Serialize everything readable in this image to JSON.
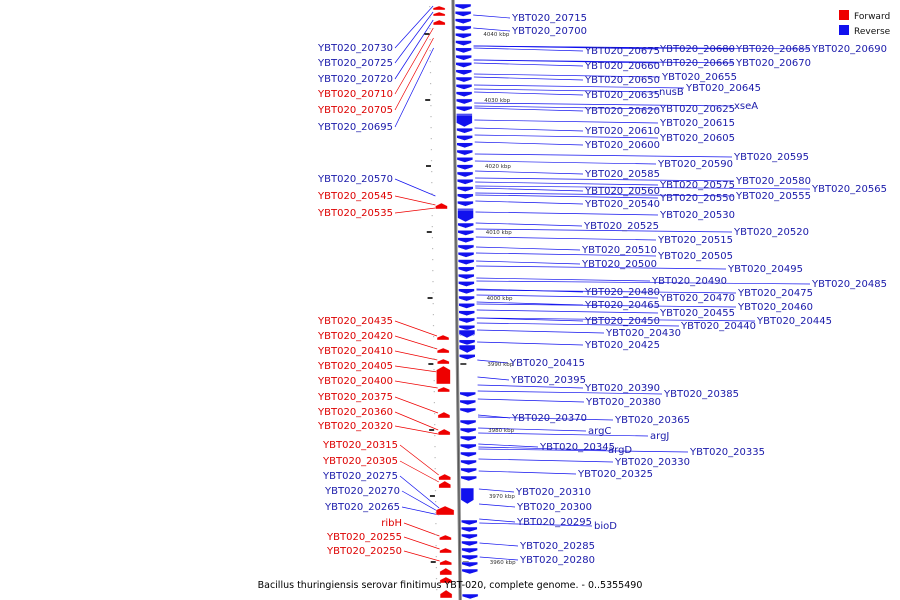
{
  "caption": "Bacillus thuringiensis serovar finitimus YBT-020, complete genome. - 0..5355490",
  "legend": [
    {
      "label": "Forward",
      "color": "#ee0000"
    },
    {
      "label": "Reverse",
      "color": "#1111ee"
    }
  ],
  "ticks": [
    "4040 kbp",
    "4030 kbp",
    "4020 kbp",
    "4010 kbp",
    "4000 kbp",
    "3990 kbp",
    "3980 kbp",
    "3970 kbp",
    "3960 kbp"
  ],
  "left_labels": [
    {
      "name": "YBT020_20730",
      "strand": "reverse"
    },
    {
      "name": "YBT020_20725",
      "strand": "reverse"
    },
    {
      "name": "YBT020_20720",
      "strand": "reverse"
    },
    {
      "name": "YBT020_20710",
      "strand": "forward"
    },
    {
      "name": "YBT020_20705",
      "strand": "forward"
    },
    {
      "name": "YBT020_20695",
      "strand": "reverse"
    },
    {
      "name": "YBT020_20570",
      "strand": "reverse"
    },
    {
      "name": "YBT020_20545",
      "strand": "forward"
    },
    {
      "name": "YBT020_20535",
      "strand": "forward"
    },
    {
      "name": "YBT020_20435",
      "strand": "forward"
    },
    {
      "name": "YBT020_20420",
      "strand": "forward"
    },
    {
      "name": "YBT020_20410",
      "strand": "forward"
    },
    {
      "name": "YBT020_20405",
      "strand": "forward"
    },
    {
      "name": "YBT020_20400",
      "strand": "forward"
    },
    {
      "name": "YBT020_20375",
      "strand": "forward"
    },
    {
      "name": "YBT020_20360",
      "strand": "forward"
    },
    {
      "name": "YBT020_20320",
      "strand": "forward"
    },
    {
      "name": "YBT020_20315",
      "strand": "forward"
    },
    {
      "name": "YBT020_20305",
      "strand": "forward"
    },
    {
      "name": "YBT020_20275",
      "strand": "reverse"
    },
    {
      "name": "YBT020_20270",
      "strand": "reverse"
    },
    {
      "name": "YBT020_20265",
      "strand": "reverse"
    },
    {
      "name": "ribH",
      "strand": "forward"
    },
    {
      "name": "YBT020_20255",
      "strand": "forward"
    },
    {
      "name": "YBT020_20250",
      "strand": "forward"
    }
  ],
  "right_labels": [
    {
      "name": "YBT020_20715",
      "strand": "reverse"
    },
    {
      "name": "YBT020_20700",
      "strand": "reverse"
    },
    {
      "name": "YBT020_20675",
      "strand": "reverse"
    },
    {
      "name": "YBT020_20680",
      "strand": "reverse"
    },
    {
      "name": "YBT020_20685",
      "strand": "reverse"
    },
    {
      "name": "YBT020_20690",
      "strand": "reverse"
    },
    {
      "name": "YBT020_20660",
      "strand": "reverse"
    },
    {
      "name": "YBT020_20665",
      "strand": "reverse"
    },
    {
      "name": "YBT020_20670",
      "strand": "reverse"
    },
    {
      "name": "YBT020_20650",
      "strand": "reverse"
    },
    {
      "name": "YBT020_20655",
      "strand": "reverse"
    },
    {
      "name": "YBT020_20635",
      "strand": "reverse"
    },
    {
      "name": "nusB",
      "strand": "reverse"
    },
    {
      "name": "YBT020_20645",
      "strand": "reverse"
    },
    {
      "name": "YBT020_20620",
      "strand": "reverse"
    },
    {
      "name": "YBT020_20625",
      "strand": "reverse"
    },
    {
      "name": "xseA",
      "strand": "reverse"
    },
    {
      "name": "YBT020_20615",
      "strand": "reverse"
    },
    {
      "name": "YBT020_20610",
      "strand": "reverse"
    },
    {
      "name": "YBT020_20605",
      "strand": "reverse"
    },
    {
      "name": "YBT020_20600",
      "strand": "reverse"
    },
    {
      "name": "YBT020_20595",
      "strand": "reverse"
    },
    {
      "name": "YBT020_20590",
      "strand": "reverse"
    },
    {
      "name": "YBT020_20585",
      "strand": "reverse"
    },
    {
      "name": "YBT020_20580",
      "strand": "reverse"
    },
    {
      "name": "YBT020_20575",
      "strand": "reverse"
    },
    {
      "name": "YBT020_20565",
      "strand": "reverse"
    },
    {
      "name": "YBT020_20560",
      "strand": "reverse"
    },
    {
      "name": "YBT020_20555",
      "strand": "reverse"
    },
    {
      "name": "YBT020_20550",
      "strand": "reverse"
    },
    {
      "name": "YBT020_20540",
      "strand": "reverse"
    },
    {
      "name": "YBT020_20530",
      "strand": "reverse"
    },
    {
      "name": "YBT020_20525",
      "strand": "reverse"
    },
    {
      "name": "YBT020_20520",
      "strand": "reverse"
    },
    {
      "name": "YBT020_20515",
      "strand": "reverse"
    },
    {
      "name": "YBT020_20510",
      "strand": "reverse"
    },
    {
      "name": "YBT020_20505",
      "strand": "reverse"
    },
    {
      "name": "YBT020_20500",
      "strand": "reverse"
    },
    {
      "name": "YBT020_20495",
      "strand": "reverse"
    },
    {
      "name": "YBT020_20490",
      "strand": "reverse"
    },
    {
      "name": "YBT020_20485",
      "strand": "reverse"
    },
    {
      "name": "YBT020_20480",
      "strand": "reverse"
    },
    {
      "name": "YBT020_20475",
      "strand": "reverse"
    },
    {
      "name": "YBT020_20470",
      "strand": "reverse"
    },
    {
      "name": "YBT020_20465",
      "strand": "reverse"
    },
    {
      "name": "YBT020_20460",
      "strand": "reverse"
    },
    {
      "name": "YBT020_20455",
      "strand": "reverse"
    },
    {
      "name": "YBT020_20450",
      "strand": "reverse"
    },
    {
      "name": "YBT020_20445",
      "strand": "reverse"
    },
    {
      "name": "YBT020_20440",
      "strand": "reverse"
    },
    {
      "name": "YBT020_20430",
      "strand": "reverse"
    },
    {
      "name": "YBT020_20425",
      "strand": "reverse"
    },
    {
      "name": "YBT020_20415",
      "strand": "reverse"
    },
    {
      "name": "YBT020_20395",
      "strand": "reverse"
    },
    {
      "name": "YBT020_20390",
      "strand": "reverse"
    },
    {
      "name": "YBT020_20385",
      "strand": "reverse"
    },
    {
      "name": "YBT020_20380",
      "strand": "reverse"
    },
    {
      "name": "YBT020_20370",
      "strand": "reverse"
    },
    {
      "name": "YBT020_20365",
      "strand": "reverse"
    },
    {
      "name": "argC",
      "strand": "reverse"
    },
    {
      "name": "argJ",
      "strand": "reverse"
    },
    {
      "name": "YBT020_20345",
      "strand": "reverse"
    },
    {
      "name": "argD",
      "strand": "reverse"
    },
    {
      "name": "YBT020_20335",
      "strand": "reverse"
    },
    {
      "name": "YBT020_20330",
      "strand": "reverse"
    },
    {
      "name": "YBT020_20325",
      "strand": "reverse"
    },
    {
      "name": "YBT020_20310",
      "strand": "reverse"
    },
    {
      "name": "YBT020_20300",
      "strand": "reverse"
    },
    {
      "name": "YBT020_20295",
      "strand": "reverse"
    },
    {
      "name": "bioD",
      "strand": "reverse"
    },
    {
      "name": "YBT020_20285",
      "strand": "reverse"
    },
    {
      "name": "YBT020_20280",
      "strand": "reverse"
    }
  ]
}
